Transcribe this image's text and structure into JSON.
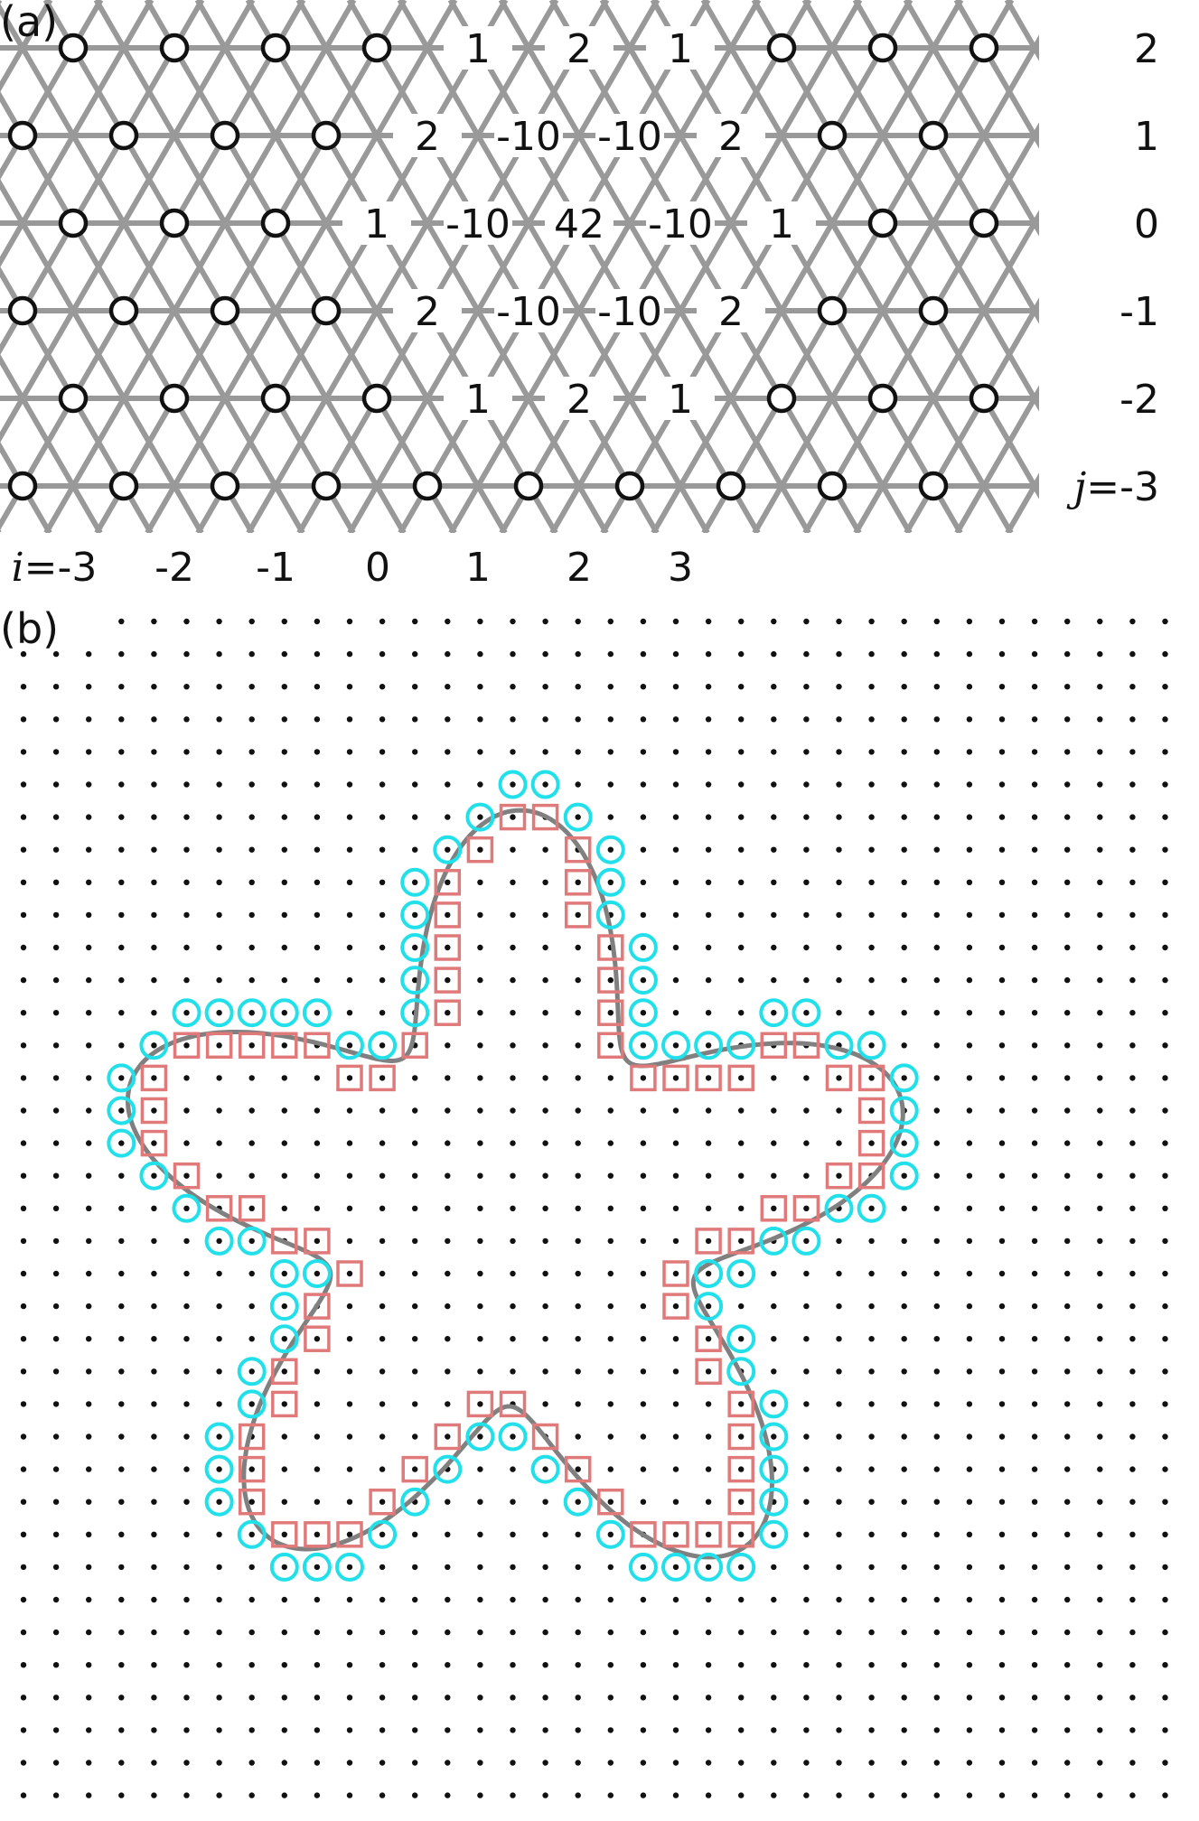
{
  "panel_a": {
    "label": "(a)",
    "stencil_rows": [
      [
        "1",
        "2",
        "1"
      ],
      [
        "2",
        "-10",
        "-10",
        "2"
      ],
      [
        "1",
        "-10",
        "42",
        "-10",
        "1"
      ],
      [
        "2",
        "-10",
        "-10",
        "2"
      ],
      [
        "1",
        "2",
        "1"
      ]
    ],
    "row_labels": [
      {
        "j": 2,
        "text": "2"
      },
      {
        "j": 1,
        "text": "1"
      },
      {
        "j": 0,
        "text": "0"
      },
      {
        "j": -1,
        "text": "-1"
      },
      {
        "j": -2,
        "text": "-2"
      },
      {
        "j": -3,
        "var": "j",
        "text": "=-3"
      }
    ],
    "col_labels": [
      {
        "i": -3,
        "var": "i",
        "text": "=-3"
      },
      {
        "i": -2,
        "text": "-2"
      },
      {
        "i": -1,
        "text": "-1"
      },
      {
        "i": 0,
        "text": "0"
      },
      {
        "i": 1,
        "text": "1"
      },
      {
        "i": 2,
        "text": "2"
      },
      {
        "i": 3,
        "text": "3"
      }
    ],
    "colors": {
      "edges": "#999999",
      "node_stroke": "#111111",
      "node_fill": "#ffffff"
    }
  },
  "panel_b": {
    "label": "(b)",
    "colors": {
      "grid_dots": "#111111",
      "boundary_curve": "#808080",
      "outer_nodes": "#22e0ea",
      "inner_nodes": "#e07a7a"
    }
  }
}
